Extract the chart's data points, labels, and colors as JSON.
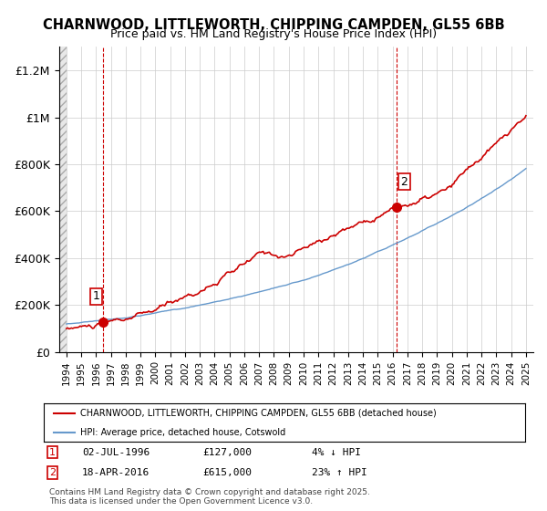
{
  "title": "CHARNWOOD, LITTLEWORTH, CHIPPING CAMPDEN, GL55 6BB",
  "subtitle": "Price paid vs. HM Land Registry's House Price Index (HPI)",
  "legend_line1": "CHARNWOOD, LITTLEWORTH, CHIPPING CAMPDEN, GL55 6BB (detached house)",
  "legend_line2": "HPI: Average price, detached house, Cotswold",
  "annotation1": {
    "label": "1",
    "date": "02-JUL-1996",
    "price": "£127,000",
    "hpi_text": "4% ↓ HPI"
  },
  "annotation2": {
    "label": "2",
    "date": "18-APR-2016",
    "price": "£615,000",
    "hpi_text": "23% ↑ HPI"
  },
  "footnote": "Contains HM Land Registry data © Crown copyright and database right 2025.\nThis data is licensed under the Open Government Licence v3.0.",
  "hpi_color": "#6699cc",
  "sale_color": "#cc0000",
  "sale1_x": 1996.5,
  "sale1_y": 127000,
  "sale2_x": 2016.3,
  "sale2_y": 615000,
  "ylim": [
    0,
    1300000
  ],
  "xlim": [
    1993.5,
    2025.5
  ],
  "yticks": [
    0,
    200000,
    400000,
    600000,
    800000,
    1000000,
    1200000
  ],
  "ytick_labels": [
    "£0",
    "£200K",
    "£400K",
    "£600K",
    "£800K",
    "£1M",
    "£1.2M"
  ],
  "xticks": [
    1994,
    1995,
    1996,
    1997,
    1998,
    1999,
    2000,
    2001,
    2002,
    2003,
    2004,
    2005,
    2006,
    2007,
    2008,
    2009,
    2010,
    2011,
    2012,
    2013,
    2014,
    2015,
    2016,
    2017,
    2018,
    2019,
    2020,
    2021,
    2022,
    2023,
    2024,
    2025
  ],
  "grid_color": "#cccccc",
  "hatch_color": "#e8e8e8"
}
